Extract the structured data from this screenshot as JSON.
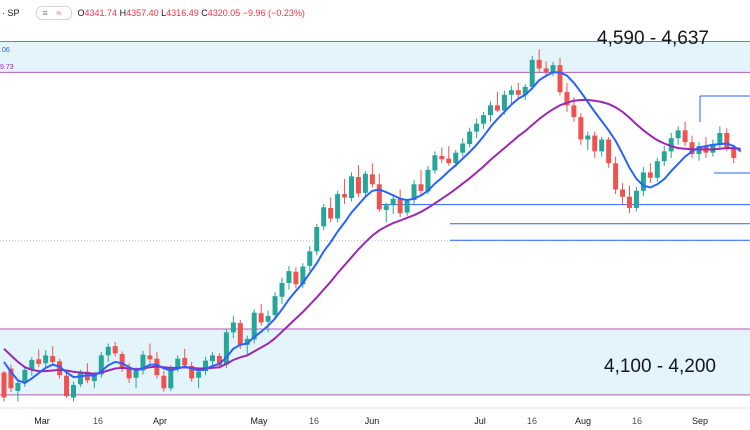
{
  "header": {
    "symbol": "· SP",
    "pill_icon_left": "chevron-icon",
    "pill_icon_right": "approx-icon",
    "open_label": "O",
    "open": "4341.74",
    "high_label": "H",
    "high": "4357.40",
    "low_label": "L",
    "low": "4316.49",
    "close_label": "C",
    "close": "4320.05",
    "change": "−9.96 (−0.23%)"
  },
  "indicators": {
    "ma_fast_value": ".06",
    "ma_slow_value": "9.73"
  },
  "zones": {
    "upper_label": "4,590 - 4,637",
    "lower_label": "4,100 - 4,200"
  },
  "colors": {
    "up": "#26a69a",
    "down": "#ef5350",
    "ma_fast": "#2962ff",
    "ma_slow": "#9c27b0",
    "zone_fill": "#e3f4fb",
    "zone_border": "#b25bb3",
    "support_line": "#2962ff"
  },
  "chart_data": {
    "type": "candlestick",
    "x_axis_labels": [
      "Mar",
      "16",
      "Apr",
      "May",
      "16",
      "Jun",
      "Jul",
      "16",
      "Aug",
      "16",
      "Sep"
    ],
    "price_range": [
      4080,
      4700
    ],
    "zones": [
      {
        "label": "4,590 - 4,637",
        "low": 4590,
        "high": 4637
      },
      {
        "label": "4,100 - 4,200",
        "low": 4100,
        "high": 4200
      }
    ],
    "horizontal_levels": [
      4335,
      4360,
      4389
    ],
    "ohlc": [
      [
        4134,
        4136,
        4090,
        4096
      ],
      [
        4140,
        4146,
        4104,
        4110
      ],
      [
        4106,
        4122,
        4090,
        4118
      ],
      [
        4120,
        4141,
        4112,
        4138
      ],
      [
        4139,
        4157,
        4129,
        4153
      ],
      [
        4154,
        4169,
        4142,
        4147
      ],
      [
        4148,
        4168,
        4140,
        4160
      ],
      [
        4159,
        4174,
        4145,
        4150
      ],
      [
        4151,
        4155,
        4125,
        4130
      ],
      [
        4129,
        4133,
        4095,
        4098
      ],
      [
        4096,
        4120,
        4090,
        4115
      ],
      [
        4116,
        4138,
        4112,
        4135
      ],
      [
        4135,
        4148,
        4118,
        4122
      ],
      [
        4121,
        4135,
        4110,
        4130
      ],
      [
        4131,
        4165,
        4126,
        4160
      ],
      [
        4160,
        4178,
        4150,
        4173
      ],
      [
        4174,
        4180,
        4158,
        4163
      ],
      [
        4162,
        4166,
        4135,
        4140
      ],
      [
        4141,
        4148,
        4118,
        4125
      ],
      [
        4126,
        4142,
        4110,
        4136
      ],
      [
        4137,
        4167,
        4131,
        4161
      ],
      [
        4160,
        4178,
        4148,
        4154
      ],
      [
        4155,
        4165,
        4125,
        4130
      ],
      [
        4129,
        4136,
        4105,
        4110
      ],
      [
        4110,
        4145,
        4106,
        4140
      ],
      [
        4141,
        4160,
        4135,
        4155
      ],
      [
        4156,
        4170,
        4140,
        4145
      ],
      [
        4144,
        4150,
        4120,
        4125
      ],
      [
        4126,
        4140,
        4110,
        4135
      ],
      [
        4136,
        4158,
        4130,
        4152
      ],
      [
        4151,
        4165,
        4140,
        4160
      ],
      [
        4159,
        4163,
        4140,
        4145
      ],
      [
        4146,
        4200,
        4141,
        4195
      ],
      [
        4195,
        4220,
        4186,
        4210
      ],
      [
        4209,
        4214,
        4170,
        4175
      ],
      [
        4176,
        4190,
        4160,
        4185
      ],
      [
        4184,
        4230,
        4178,
        4225
      ],
      [
        4224,
        4238,
        4205,
        4210
      ],
      [
        4211,
        4228,
        4195,
        4220
      ],
      [
        4221,
        4256,
        4216,
        4250
      ],
      [
        4249,
        4278,
        4238,
        4270
      ],
      [
        4270,
        4296,
        4260,
        4288
      ],
      [
        4287,
        4294,
        4262,
        4268
      ],
      [
        4268,
        4300,
        4262,
        4295
      ],
      [
        4296,
        4326,
        4288,
        4318
      ],
      [
        4318,
        4360,
        4312,
        4355
      ],
      [
        4356,
        4390,
        4350,
        4385
      ],
      [
        4384,
        4400,
        4362,
        4368
      ],
      [
        4368,
        4410,
        4362,
        4405
      ],
      [
        4405,
        4428,
        4390,
        4400
      ],
      [
        4399,
        4438,
        4394,
        4432
      ],
      [
        4431,
        4449,
        4400,
        4406
      ],
      [
        4407,
        4440,
        4402,
        4436
      ],
      [
        4435,
        4452,
        4415,
        4420
      ],
      [
        4420,
        4436,
        4378,
        4382
      ],
      [
        4381,
        4392,
        4362,
        4388
      ],
      [
        4389,
        4405,
        4375,
        4398
      ],
      [
        4398,
        4412,
        4370,
        4376
      ],
      [
        4377,
        4398,
        4372,
        4395
      ],
      [
        4396,
        4426,
        4390,
        4420
      ],
      [
        4420,
        4442,
        4404,
        4410
      ],
      [
        4409,
        4448,
        4405,
        4442
      ],
      [
        4441,
        4470,
        4436,
        4464
      ],
      [
        4463,
        4476,
        4452,
        4458
      ],
      [
        4459,
        4478,
        4448,
        4452
      ],
      [
        4452,
        4472,
        4446,
        4468
      ],
      [
        4468,
        4490,
        4462,
        4482
      ],
      [
        4481,
        4506,
        4476,
        4500
      ],
      [
        4500,
        4520,
        4490,
        4512
      ],
      [
        4512,
        4530,
        4504,
        4525
      ],
      [
        4525,
        4546,
        4515,
        4540
      ],
      [
        4540,
        4560,
        4530,
        4532
      ],
      [
        4532,
        4562,
        4526,
        4556
      ],
      [
        4556,
        4570,
        4540,
        4563
      ],
      [
        4563,
        4574,
        4550,
        4556
      ],
      [
        4556,
        4572,
        4548,
        4568
      ],
      [
        4568,
        4615,
        4563,
        4609
      ],
      [
        4609,
        4625,
        4590,
        4596
      ],
      [
        4596,
        4607,
        4582,
        4590
      ],
      [
        4590,
        4606,
        4584,
        4601
      ],
      [
        4601,
        4612,
        4555,
        4560
      ],
      [
        4560,
        4574,
        4530,
        4540
      ],
      [
        4540,
        4552,
        4515,
        4522
      ],
      [
        4522,
        4528,
        4480,
        4488
      ],
      [
        4488,
        4500,
        4472,
        4494
      ],
      [
        4494,
        4500,
        4460,
        4470
      ],
      [
        4470,
        4492,
        4462,
        4488
      ],
      [
        4488,
        4492,
        4445,
        4452
      ],
      [
        4452,
        4462,
        4405,
        4412
      ],
      [
        4412,
        4422,
        4390,
        4401
      ],
      [
        4401,
        4418,
        4376,
        4384
      ],
      [
        4384,
        4416,
        4379,
        4410
      ],
      [
        4410,
        4446,
        4402,
        4438
      ],
      [
        4438,
        4452,
        4422,
        4430
      ],
      [
        4430,
        4460,
        4424,
        4455
      ],
      [
        4455,
        4478,
        4448,
        4470
      ],
      [
        4470,
        4498,
        4460,
        4490
      ],
      [
        4490,
        4508,
        4480,
        4502
      ],
      [
        4502,
        4515,
        4478,
        4484
      ],
      [
        4484,
        4494,
        4460,
        4466
      ],
      [
        4466,
        4484,
        4456,
        4478
      ],
      [
        4478,
        4492,
        4460,
        4468
      ],
      [
        4468,
        4488,
        4462,
        4480
      ],
      [
        4480,
        4508,
        4474,
        4498
      ],
      [
        4498,
        4505,
        4470,
        4475
      ],
      [
        4475,
        4480,
        4452,
        4460
      ]
    ],
    "ma_fast": [
      4150,
      4135,
      4122,
      4118,
      4125,
      4133,
      4141,
      4146,
      4143,
      4134,
      4127,
      4128,
      4130,
      4129,
      4136,
      4145,
      4150,
      4148,
      4142,
      4137,
      4140,
      4146,
      4146,
      4140,
      4137,
      4140,
      4143,
      4140,
      4137,
      4139,
      4144,
      4147,
      4157,
      4170,
      4176,
      4178,
      4188,
      4196,
      4205,
      4216,
      4230,
      4245,
      4258,
      4270,
      4285,
      4300,
      4318,
      4332,
      4348,
      4362,
      4377,
      4389,
      4401,
      4410,
      4412,
      4408,
      4403,
      4398,
      4396,
      4398,
      4403,
      4410,
      4421,
      4430,
      4440,
      4449,
      4459,
      4469,
      4480,
      4493,
      4507,
      4519,
      4530,
      4541,
      4550,
      4556,
      4566,
      4578,
      4585,
      4590,
      4590,
      4585,
      4574,
      4560,
      4545,
      4530,
      4516,
      4502,
      4486,
      4466,
      4445,
      4428,
      4418,
      4415,
      4420,
      4428,
      4440,
      4451,
      4462,
      4470,
      4476,
      4478,
      4480,
      4481,
      4482,
      4478,
      4470
    ],
    "ma_slow": [
      4170,
      4160,
      4150,
      4142,
      4138,
      4136,
      4136,
      4137,
      4138,
      4137,
      4135,
      4134,
      4133,
      4132,
      4134,
      4137,
      4140,
      4141,
      4140,
      4139,
      4140,
      4142,
      4143,
      4142,
      4141,
      4141,
      4142,
      4141,
      4140,
      4140,
      4141,
      4142,
      4147,
      4153,
      4157,
      4160,
      4166,
      4172,
      4178,
      4186,
      4196,
      4206,
      4216,
      4226,
      4237,
      4248,
      4260,
      4272,
      4285,
      4297,
      4309,
      4321,
      4332,
      4342,
      4350,
      4356,
      4361,
      4365,
      4369,
      4373,
      4378,
      4384,
      4391,
      4398,
      4405,
      4413,
      4421,
      4429,
      4438,
      4447,
      4457,
      4466,
      4475,
      4484,
      4493,
      4501,
      4510,
      4519,
      4527,
      4534,
      4540,
      4544,
      4547,
      4548,
      4548,
      4547,
      4545,
      4542,
      4537,
      4530,
      4521,
      4511,
      4502,
      4494,
      4487,
      4482,
      4478,
      4475,
      4474,
      4473,
      4473,
      4473,
      4473,
      4474,
      4475,
      4475,
      4474
    ]
  }
}
